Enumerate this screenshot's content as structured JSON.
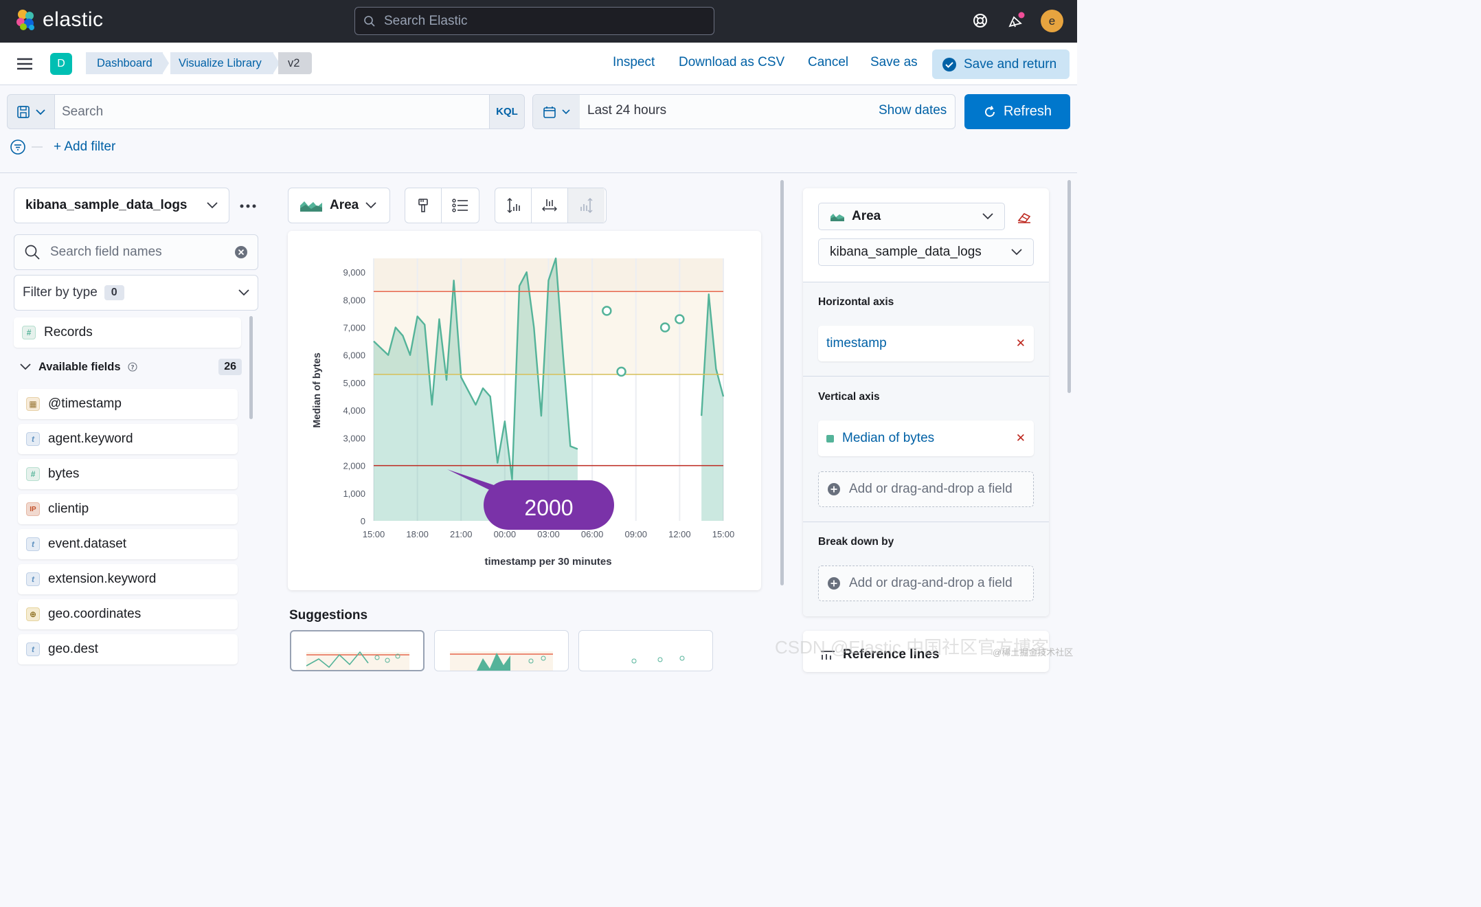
{
  "header": {
    "logo_text": "elastic",
    "search_placeholder": "Search Elastic",
    "user_initial": "e"
  },
  "nav": {
    "space_initial": "D",
    "breadcrumbs": [
      "Dashboard",
      "Visualize Library",
      "v2"
    ],
    "links": [
      "Inspect",
      "Download as CSV",
      "Cancel",
      "Save as"
    ],
    "save_return": "Save and return"
  },
  "query": {
    "search_placeholder": "Search",
    "language": "KQL",
    "time_range": "Last 24 hours",
    "show_dates": "Show dates",
    "refresh": "Refresh",
    "add_filter": "+ Add filter"
  },
  "sidebar": {
    "data_view": "kibana_sample_data_logs",
    "field_search_placeholder": "Search field names",
    "filter_by_type": "Filter by type",
    "filter_count": "0",
    "records": "Records",
    "available_fields_label": "Available fields",
    "available_fields_count": "26",
    "fields": [
      {
        "name": "@timestamp",
        "type": "date"
      },
      {
        "name": "agent.keyword",
        "type": "string"
      },
      {
        "name": "bytes",
        "type": "number"
      },
      {
        "name": "clientip",
        "type": "ip"
      },
      {
        "name": "event.dataset",
        "type": "string"
      },
      {
        "name": "extension.keyword",
        "type": "string"
      },
      {
        "name": "geo.coordinates",
        "type": "geo"
      },
      {
        "name": "geo.dest",
        "type": "string"
      }
    ]
  },
  "toolbar": {
    "chart_type": "Area"
  },
  "chart_data": {
    "type": "area",
    "xlabel": "timestamp per 30 minutes",
    "ylabel": "Median of bytes",
    "x_ticks": [
      "15:00",
      "18:00",
      "21:00",
      "00:00",
      "03:00",
      "06:00",
      "09:00",
      "12:00",
      "15:00"
    ],
    "y_ticks": [
      "0",
      "1,000",
      "2,000",
      "3,000",
      "4,000",
      "5,000",
      "6,000",
      "7,000",
      "8,000",
      "9,000"
    ],
    "ylim": [
      0,
      9500
    ],
    "series": [
      {
        "name": "Median of bytes",
        "color": "#54b399",
        "x_hours": [
          0,
          0.5,
          1,
          1.5,
          2,
          2.5,
          3,
          3.5,
          4,
          4.5,
          5,
          5.5,
          6,
          6.5,
          7,
          7.5,
          8,
          8.5,
          9,
          9.5,
          10,
          10.5,
          11,
          11.5,
          12,
          12.5,
          13,
          13.5,
          14,
          14.5,
          22.5,
          23,
          23.5,
          24
        ],
        "values": [
          6500,
          6250,
          6000,
          7000,
          6700,
          6000,
          7400,
          7100,
          4200,
          7300,
          5100,
          8700,
          5200,
          4700,
          4200,
          4800,
          4500,
          2100,
          3600,
          1500,
          8500,
          9000,
          7000,
          3800,
          8700,
          9500,
          6000,
          2700,
          2600,
          null,
          3800,
          8200,
          5500,
          4500
        ]
      }
    ],
    "isolated_points": [
      {
        "x_hours": 16,
        "value": 7600
      },
      {
        "x_hours": 17,
        "value": 5400
      },
      {
        "x_hours": 20,
        "value": 7000
      },
      {
        "x_hours": 21,
        "value": 7300
      }
    ],
    "reference_lines": [
      {
        "value": 8300,
        "color": "#e7664c"
      },
      {
        "value": 5300,
        "color": "#d6bf57"
      },
      {
        "value": 2000,
        "color": "#bd271e"
      }
    ],
    "annotation": "2000"
  },
  "suggestions": {
    "title": "Suggestions"
  },
  "config": {
    "chart_type": "Area",
    "data_view": "kibana_sample_data_logs",
    "horizontal_axis_title": "Horizontal axis",
    "horizontal_field": "timestamp",
    "vertical_axis_title": "Vertical axis",
    "vertical_field": "Median of bytes",
    "add_field": "Add or drag-and-drop a field",
    "breakdown_title": "Break down by",
    "reference_lines_title": "Reference lines"
  },
  "watermark": {
    "text": "CSDN @Elastic 中国社区官方博客",
    "site": "@稀土掘金技术社区"
  },
  "colors": {
    "accent": "#0077cc",
    "link": "#0061a6",
    "annotation": "#7a32a8",
    "area": "#54b399"
  }
}
